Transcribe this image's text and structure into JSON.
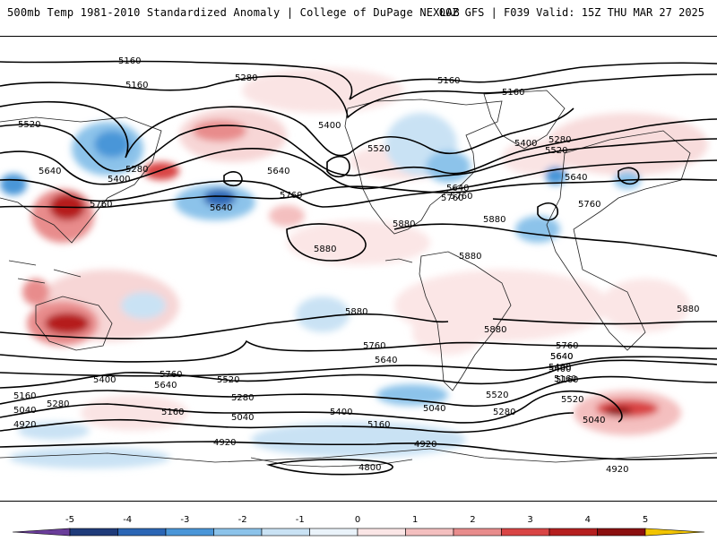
{
  "title": {
    "left": "500mb Temp 1981-2010 Standardized Anomaly | College of DuPage NEXLAB",
    "right": "00Z GFS | F039 Valid: 15Z THU MAR 27 2025"
  },
  "contour_labels": [
    "5160",
    "5280",
    "5520",
    "5640",
    "5400",
    "5760",
    "5880",
    "4920",
    "5040",
    "4800"
  ],
  "colorbar": {
    "ticks": [
      "-5",
      "-4",
      "-3",
      "-2",
      "-1",
      "0",
      "1",
      "2",
      "3",
      "4",
      "5"
    ],
    "colors": [
      "#6a3d9a",
      "#1f3b7a",
      "#2b66b5",
      "#4a96d8",
      "#8cc3ea",
      "#c9e2f4",
      "#eaf3fa",
      "#fbe6e6",
      "#f4bfbf",
      "#e88c8c",
      "#d94545",
      "#b51f1f",
      "#8b0f0f",
      "#f2c400"
    ]
  },
  "labels": [
    {
      "id": "l1",
      "text": "5160"
    },
    {
      "id": "l2",
      "text": "5160"
    },
    {
      "id": "l3",
      "text": "5280"
    },
    {
      "id": "l4",
      "text": "5160"
    },
    {
      "id": "l5",
      "text": "5160"
    },
    {
      "id": "l6",
      "text": "5400"
    },
    {
      "id": "l7",
      "text": "5520"
    },
    {
      "id": "l8",
      "text": "5280"
    },
    {
      "id": "l9",
      "text": "5400"
    },
    {
      "id": "l10",
      "text": "5520"
    },
    {
      "id": "l11",
      "text": "5640"
    },
    {
      "id": "l12",
      "text": "5520"
    },
    {
      "id": "l13",
      "text": "5640"
    },
    {
      "id": "l14",
      "text": "5280"
    },
    {
      "id": "l15",
      "text": "5400"
    },
    {
      "id": "l16",
      "text": "5760"
    },
    {
      "id": "l17",
      "text": "5640"
    },
    {
      "id": "l18",
      "text": "5760"
    },
    {
      "id": "l19",
      "text": "5640"
    },
    {
      "id": "l20",
      "text": "5760"
    },
    {
      "id": "l21",
      "text": "5640"
    },
    {
      "id": "l22",
      "text": "5760"
    },
    {
      "id": "l23",
      "text": "5880"
    },
    {
      "id": "l24",
      "text": "5880"
    },
    {
      "id": "l25",
      "text": "5880"
    },
    {
      "id": "l26",
      "text": "5880"
    },
    {
      "id": "l27",
      "text": "5880"
    },
    {
      "id": "l28",
      "text": "5880"
    },
    {
      "id": "l29",
      "text": "5760"
    },
    {
      "id": "l30",
      "text": "5760"
    },
    {
      "id": "l31",
      "text": "5640"
    },
    {
      "id": "l32",
      "text": "5400"
    },
    {
      "id": "l33",
      "text": "5160"
    },
    {
      "id": "l34",
      "text": "5760"
    },
    {
      "id": "l35",
      "text": "5640"
    },
    {
      "id": "l36",
      "text": "5520"
    },
    {
      "id": "l37",
      "text": "5280"
    },
    {
      "id": "l38",
      "text": "5160"
    },
    {
      "id": "l39",
      "text": "5040"
    },
    {
      "id": "l40",
      "text": "5400"
    },
    {
      "id": "l41",
      "text": "5160"
    },
    {
      "id": "l42",
      "text": "5520"
    },
    {
      "id": "l43",
      "text": "5040"
    },
    {
      "id": "l44",
      "text": "5280"
    },
    {
      "id": "l45",
      "text": "5640"
    },
    {
      "id": "l46",
      "text": "5400"
    },
    {
      "id": "l47",
      "text": "5160"
    },
    {
      "id": "l48",
      "text": "5040"
    },
    {
      "id": "l49",
      "text": "4920"
    },
    {
      "id": "l50",
      "text": "4920"
    },
    {
      "id": "l51",
      "text": "4920"
    },
    {
      "id": "l52",
      "text": "4800"
    },
    {
      "id": "l53",
      "text": "4920"
    },
    {
      "id": "l54",
      "text": "5280"
    },
    {
      "id": "l55",
      "text": "5040"
    },
    {
      "id": "l56",
      "text": "5640"
    },
    {
      "id": "l57",
      "text": "5520"
    },
    {
      "id": "l58",
      "text": "5160"
    },
    {
      "id": "l59",
      "text": "5400"
    },
    {
      "id": "l60",
      "text": "5880"
    },
    {
      "id": "l61",
      "text": "5760"
    }
  ]
}
